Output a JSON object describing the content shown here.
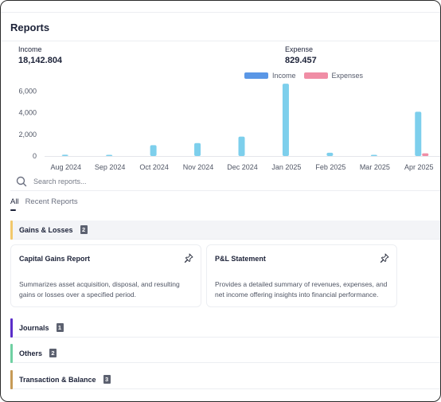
{
  "page": {
    "title": "Reports"
  },
  "summary": {
    "income_label": "Income",
    "income_value": "18,142.804",
    "expense_label": "Expense",
    "expense_value": "829.457"
  },
  "colors": {
    "income": "#7dcfec",
    "income_legend": "#5a97e6",
    "expense": "#f08da5"
  },
  "chart_data": {
    "type": "bar",
    "categories": [
      "Aug 2024",
      "Sep 2024",
      "Oct 2024",
      "Nov 2024",
      "Dec 2024",
      "Jan 2025",
      "Feb 2025",
      "Mar 2025",
      "Apr 2025"
    ],
    "series": [
      {
        "name": "Income",
        "values": [
          120,
          40,
          1000,
          1200,
          1800,
          6700,
          300,
          100,
          4100
        ]
      },
      {
        "name": "Expenses",
        "values": [
          0,
          0,
          0,
          0,
          0,
          0,
          0,
          0,
          250
        ]
      }
    ],
    "y_ticks": [
      "0",
      "2,000",
      "4,000",
      "6,000"
    ],
    "ylim": [
      0,
      7000
    ],
    "grid": false,
    "legend_position": "top-center"
  },
  "search": {
    "placeholder": "Search reports..."
  },
  "tabs": [
    {
      "label": "All",
      "active": true
    },
    {
      "label": "Recent Reports",
      "active": false
    }
  ],
  "categories": [
    {
      "label": "Gains & Losses",
      "count": "2",
      "color": "#f2c86b"
    },
    {
      "label": "Journals",
      "count": "1",
      "color": "#5b2ec9"
    },
    {
      "label": "Others",
      "count": "2",
      "color": "#6fd0a2"
    },
    {
      "label": "Transaction & Balance",
      "count": "3",
      "color": "#c69a56"
    }
  ],
  "cards": [
    {
      "title": "Capital Gains Report",
      "description": "Summarizes asset acquisition, disposal, and resulting gains or losses over a specified period.",
      "icon": "pin-icon"
    },
    {
      "title": "P&L Statement",
      "description": "Provides a detailed summary of revenues, expenses, and net income offering insights into financial performance.",
      "icon": "pin-icon"
    }
  ]
}
